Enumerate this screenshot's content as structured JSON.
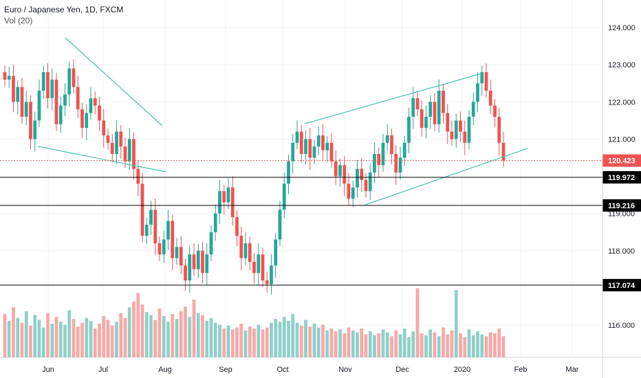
{
  "header": {
    "title": "Euro / Japanese Yen, 1D, FXCM",
    "volume_label": "Vol (20)"
  },
  "chart_data": {
    "type": "candlestick",
    "symbol": "EURJPY",
    "timeframe": "1D",
    "source": "FXCM",
    "x_ticks": [
      "Jun",
      "Jul",
      "Aug",
      "Sep",
      "Oct",
      "Nov",
      "Dec",
      "2020",
      "Feb",
      "Mar"
    ],
    "y_ticks": [
      "124.000",
      "123.000",
      "122.000",
      "121.000",
      "119.000",
      "118.000",
      "116.000"
    ],
    "ylim": [
      115.0,
      124.7
    ],
    "current_price": "120.423",
    "levels": [
      "119.972",
      "119.216",
      "117.074"
    ],
    "colors": {
      "up": "#26a69a",
      "down": "#ef5350",
      "up_volume": "#8fd0c9",
      "down_volume": "#f7a9a7",
      "trendline": "#4bbfb0",
      "level": "#000000",
      "current": "#ef5350"
    },
    "approx_closes": [
      122.6,
      122.7,
      122.0,
      122.4,
      121.6,
      122.0,
      121.0,
      121.5,
      122.3,
      122.8,
      122.1,
      122.6,
      121.4,
      121.9,
      122.2,
      122.9,
      122.4,
      121.8,
      121.3,
      121.7,
      122.1,
      121.9,
      121.5,
      121.1,
      120.9,
      120.6,
      121.2,
      120.8,
      120.4,
      121.0,
      120.2,
      119.8,
      118.4,
      118.7,
      119.1,
      118.2,
      117.9,
      118.3,
      118.8,
      117.8,
      118.1,
      117.6,
      117.2,
      117.9,
      117.5,
      118.0,
      117.4,
      117.9,
      118.5,
      119.0,
      119.6,
      119.3,
      119.7,
      118.9,
      118.4,
      117.8,
      118.2,
      117.7,
      117.4,
      117.9,
      117.2,
      117.1,
      117.6,
      118.3,
      119.1,
      119.8,
      120.4,
      120.9,
      121.2,
      120.6,
      121.0,
      120.5,
      120.8,
      121.1,
      120.7,
      120.9,
      120.4,
      120.0,
      120.3,
      119.8,
      119.4,
      119.7,
      120.2,
      119.9,
      119.6,
      120.1,
      120.6,
      120.3,
      120.9,
      121.1,
      120.6,
      120.1,
      120.5,
      120.9,
      121.6,
      122.1,
      121.8,
      121.3,
      121.6,
      122.0,
      121.4,
      122.3,
      121.7,
      121.2,
      121.0,
      121.5,
      121.2,
      120.9,
      121.6,
      122.0,
      122.5,
      122.8,
      122.3,
      121.9,
      121.6,
      120.9,
      120.423
    ],
    "approx_volumes": [
      0.45,
      0.38,
      0.52,
      0.41,
      0.36,
      0.48,
      0.33,
      0.44,
      0.39,
      0.31,
      0.46,
      0.35,
      0.42,
      0.37,
      0.34,
      0.49,
      0.4,
      0.32,
      0.36,
      0.41,
      0.38,
      0.3,
      0.35,
      0.43,
      0.39,
      0.33,
      0.37,
      0.46,
      0.41,
      0.52,
      0.58,
      0.67,
      0.55,
      0.47,
      0.44,
      0.39,
      0.51,
      0.43,
      0.37,
      0.45,
      0.4,
      0.48,
      0.53,
      0.42,
      0.6,
      0.46,
      0.44,
      0.38,
      0.41,
      0.36,
      0.34,
      0.3,
      0.33,
      0.29,
      0.31,
      0.35,
      0.28,
      0.32,
      0.3,
      0.34,
      0.29,
      0.31,
      0.36,
      0.4,
      0.37,
      0.42,
      0.38,
      0.45,
      0.36,
      0.33,
      0.39,
      0.32,
      0.35,
      0.31,
      0.34,
      0.28,
      0.3,
      0.27,
      0.29,
      0.25,
      0.31,
      0.28,
      0.26,
      0.3,
      0.24,
      0.27,
      0.23,
      0.25,
      0.29,
      0.26,
      0.22,
      0.28,
      0.24,
      0.3,
      0.21,
      0.27,
      0.72,
      0.25,
      0.23,
      0.29,
      0.26,
      0.22,
      0.31,
      0.24,
      0.28,
      0.7,
      0.25,
      0.21,
      0.29,
      0.23,
      0.27,
      0.24,
      0.22,
      0.26,
      0.25,
      0.3,
      0.22
    ]
  }
}
